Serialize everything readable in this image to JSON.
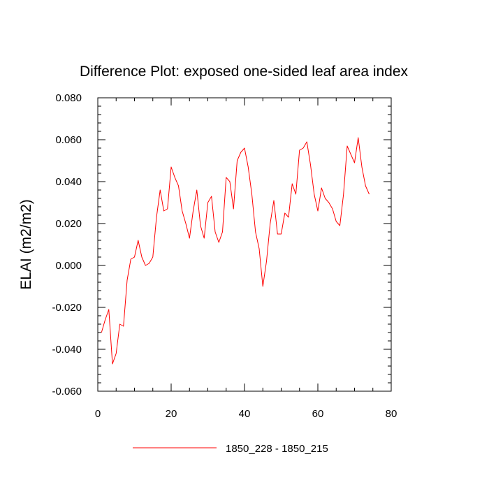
{
  "chart_data": {
    "type": "line",
    "title": "Difference Plot: exposed one-sided leaf area index",
    "xlabel": "",
    "ylabel": "ELAI  (m2/m2)",
    "xlim": [
      0,
      80
    ],
    "ylim": [
      -0.06,
      0.08
    ],
    "x_ticks": [
      0,
      20,
      40,
      60,
      80
    ],
    "x_tick_labels": [
      "0",
      "20",
      "40",
      "60",
      "80"
    ],
    "y_ticks": [
      -0.06,
      -0.04,
      -0.02,
      0.0,
      0.02,
      0.04,
      0.06,
      0.08
    ],
    "y_tick_labels": [
      "-0.060",
      "-0.040",
      "-0.020",
      "0.000",
      "0.020",
      "0.040",
      "0.060",
      "0.080"
    ],
    "grid": false,
    "legend_position": "bottom-center",
    "series": [
      {
        "name": "1850_228 - 1850_215",
        "color": "#ff0000",
        "x": [
          1,
          2,
          3,
          4,
          5,
          6,
          7,
          8,
          9,
          10,
          11,
          12,
          13,
          14,
          15,
          16,
          17,
          18,
          19,
          20,
          21,
          22,
          23,
          24,
          25,
          26,
          27,
          28,
          29,
          30,
          31,
          32,
          33,
          34,
          35,
          36,
          37,
          38,
          39,
          40,
          41,
          42,
          43,
          44,
          45,
          46,
          47,
          48,
          49,
          50,
          51,
          52,
          53,
          54,
          55,
          56,
          57,
          58,
          59,
          60,
          61,
          62,
          63,
          64,
          65,
          66,
          67,
          68,
          69,
          70,
          71,
          72,
          73,
          74
        ],
        "y": [
          -0.032,
          -0.026,
          -0.021,
          -0.047,
          -0.042,
          -0.028,
          -0.029,
          -0.007,
          0.003,
          0.004,
          0.012,
          0.004,
          0.0,
          0.001,
          0.004,
          0.023,
          0.036,
          0.026,
          0.027,
          0.047,
          0.042,
          0.038,
          0.026,
          0.02,
          0.013,
          0.026,
          0.036,
          0.019,
          0.013,
          0.03,
          0.033,
          0.016,
          0.011,
          0.016,
          0.042,
          0.04,
          0.027,
          0.05,
          0.054,
          0.056,
          0.047,
          0.034,
          0.016,
          0.008,
          -0.01,
          0.002,
          0.02,
          0.031,
          0.015,
          0.015,
          0.025,
          0.023,
          0.039,
          0.034,
          0.055,
          0.056,
          0.059,
          0.048,
          0.034,
          0.026,
          0.037,
          0.032,
          0.03,
          0.027,
          0.021,
          0.019,
          0.034,
          0.057,
          0.053,
          0.049,
          0.061,
          0.047,
          0.038,
          0.034
        ]
      }
    ]
  }
}
